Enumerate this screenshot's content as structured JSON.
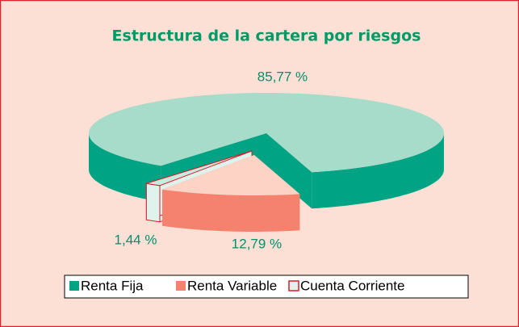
{
  "chart_data": {
    "type": "pie3d",
    "title": "Estructura de la cartera por riesgos",
    "categories": [
      "Renta Fija",
      "Renta Variable",
      "Cuenta Corriente"
    ],
    "values": [
      85.77,
      12.79,
      1.44
    ],
    "value_labels": [
      "85,77 %",
      "12,79 %",
      "1,44 %"
    ],
    "colors": [
      "#00a383",
      "#f4826e",
      "#dff2ec"
    ],
    "top_colors": [
      "#a6dcc9",
      "#fcd3c4",
      "#c8ebe0"
    ],
    "legend": "bottom"
  }
}
